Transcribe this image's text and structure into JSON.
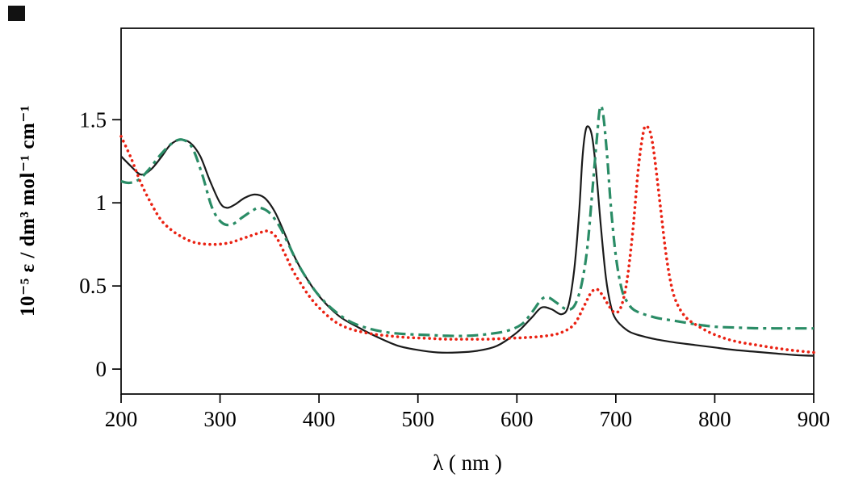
{
  "figure": {
    "background": "#ffffff",
    "frame_color": "#000000"
  },
  "chart_data": {
    "type": "line",
    "title": "",
    "xlabel": "λ ( nm )",
    "ylabel": "10⁻⁵ ε / dm³ mol⁻¹ cm⁻¹",
    "xlim": [
      200,
      900
    ],
    "ylim": [
      -0.15,
      2.05
    ],
    "xticks": [
      200,
      300,
      400,
      500,
      600,
      700,
      800,
      900
    ],
    "xtick_labels": [
      "200",
      "300",
      "400",
      "500",
      "600",
      "700",
      "800",
      "900"
    ],
    "yticks": [
      0,
      0.5,
      1,
      1.5
    ],
    "ytick_labels": [
      "0",
      "0.5",
      "1",
      "1.5"
    ],
    "grid": false,
    "legend": "none",
    "series": [
      {
        "name": "solid-black",
        "color": "#1a1a1a",
        "style": "solid",
        "width": 2.2,
        "x": [
          200,
          210,
          220,
          230,
          240,
          250,
          260,
          270,
          280,
          290,
          300,
          307,
          315,
          325,
          335,
          345,
          355,
          365,
          375,
          385,
          400,
          420,
          440,
          460,
          480,
          500,
          520,
          540,
          560,
          580,
          600,
          615,
          625,
          635,
          645,
          652,
          658,
          663,
          666,
          669,
          672,
          676,
          680,
          685,
          690,
          695,
          700,
          710,
          720,
          740,
          760,
          780,
          800,
          820,
          840,
          860,
          880,
          900
        ],
        "y": [
          1.28,
          1.22,
          1.17,
          1.2,
          1.27,
          1.35,
          1.38,
          1.36,
          1.28,
          1.13,
          1.0,
          0.97,
          0.99,
          1.03,
          1.05,
          1.03,
          0.95,
          0.82,
          0.68,
          0.57,
          0.44,
          0.32,
          0.25,
          0.19,
          0.14,
          0.115,
          0.1,
          0.1,
          0.11,
          0.14,
          0.22,
          0.31,
          0.37,
          0.36,
          0.33,
          0.38,
          0.6,
          0.95,
          1.25,
          1.42,
          1.46,
          1.4,
          1.2,
          0.85,
          0.55,
          0.38,
          0.3,
          0.24,
          0.21,
          0.18,
          0.16,
          0.145,
          0.13,
          0.115,
          0.105,
          0.095,
          0.085,
          0.08
        ]
      },
      {
        "name": "dash-dot-green",
        "color": "#2a8c66",
        "style": "dash-dot",
        "width": 3.2,
        "x": [
          200,
          208,
          218,
          228,
          240,
          252,
          262,
          272,
          282,
          292,
          302,
          312,
          322,
          332,
          340,
          350,
          360,
          370,
          380,
          395,
          410,
          430,
          450,
          470,
          490,
          510,
          530,
          550,
          570,
          590,
          605,
          615,
          625,
          632,
          640,
          650,
          658,
          665,
          671,
          676,
          681,
          684,
          687,
          691,
          695,
          700,
          706,
          712,
          720,
          740,
          760,
          780,
          800,
          820,
          840,
          860,
          880,
          900
        ],
        "y": [
          1.13,
          1.12,
          1.14,
          1.2,
          1.29,
          1.36,
          1.38,
          1.33,
          1.17,
          0.97,
          0.88,
          0.87,
          0.91,
          0.95,
          0.97,
          0.94,
          0.86,
          0.74,
          0.62,
          0.48,
          0.38,
          0.29,
          0.245,
          0.22,
          0.21,
          0.205,
          0.2,
          0.2,
          0.21,
          0.23,
          0.27,
          0.34,
          0.42,
          0.43,
          0.4,
          0.36,
          0.38,
          0.5,
          0.72,
          1.05,
          1.4,
          1.57,
          1.54,
          1.3,
          0.98,
          0.68,
          0.48,
          0.4,
          0.35,
          0.31,
          0.29,
          0.27,
          0.255,
          0.25,
          0.246,
          0.245,
          0.245,
          0.245
        ]
      },
      {
        "name": "dotted-red",
        "color": "#ea2213",
        "style": "dotted",
        "width": 3.6,
        "x": [
          200,
          210,
          220,
          230,
          240,
          250,
          260,
          270,
          280,
          295,
          310,
          320,
          330,
          340,
          348,
          356,
          365,
          373,
          381,
          390,
          400,
          415,
          430,
          450,
          470,
          490,
          510,
          530,
          550,
          570,
          590,
          610,
          630,
          645,
          658,
          668,
          675,
          681,
          687,
          693,
          699,
          705,
          711,
          717,
          723,
          728,
          731,
          735,
          739,
          745,
          751,
          757,
          763,
          771,
          780,
          795,
          810,
          825,
          840,
          860,
          880,
          900
        ],
        "y": [
          1.4,
          1.27,
          1.12,
          1.0,
          0.9,
          0.84,
          0.8,
          0.77,
          0.755,
          0.75,
          0.76,
          0.78,
          0.8,
          0.82,
          0.83,
          0.8,
          0.7,
          0.6,
          0.52,
          0.44,
          0.37,
          0.29,
          0.245,
          0.215,
          0.2,
          0.19,
          0.185,
          0.18,
          0.18,
          0.18,
          0.185,
          0.19,
          0.2,
          0.22,
          0.27,
          0.38,
          0.46,
          0.48,
          0.44,
          0.38,
          0.34,
          0.37,
          0.52,
          0.82,
          1.22,
          1.43,
          1.46,
          1.42,
          1.28,
          0.98,
          0.68,
          0.48,
          0.38,
          0.31,
          0.27,
          0.22,
          0.185,
          0.162,
          0.147,
          0.128,
          0.112,
          0.1
        ]
      }
    ]
  }
}
